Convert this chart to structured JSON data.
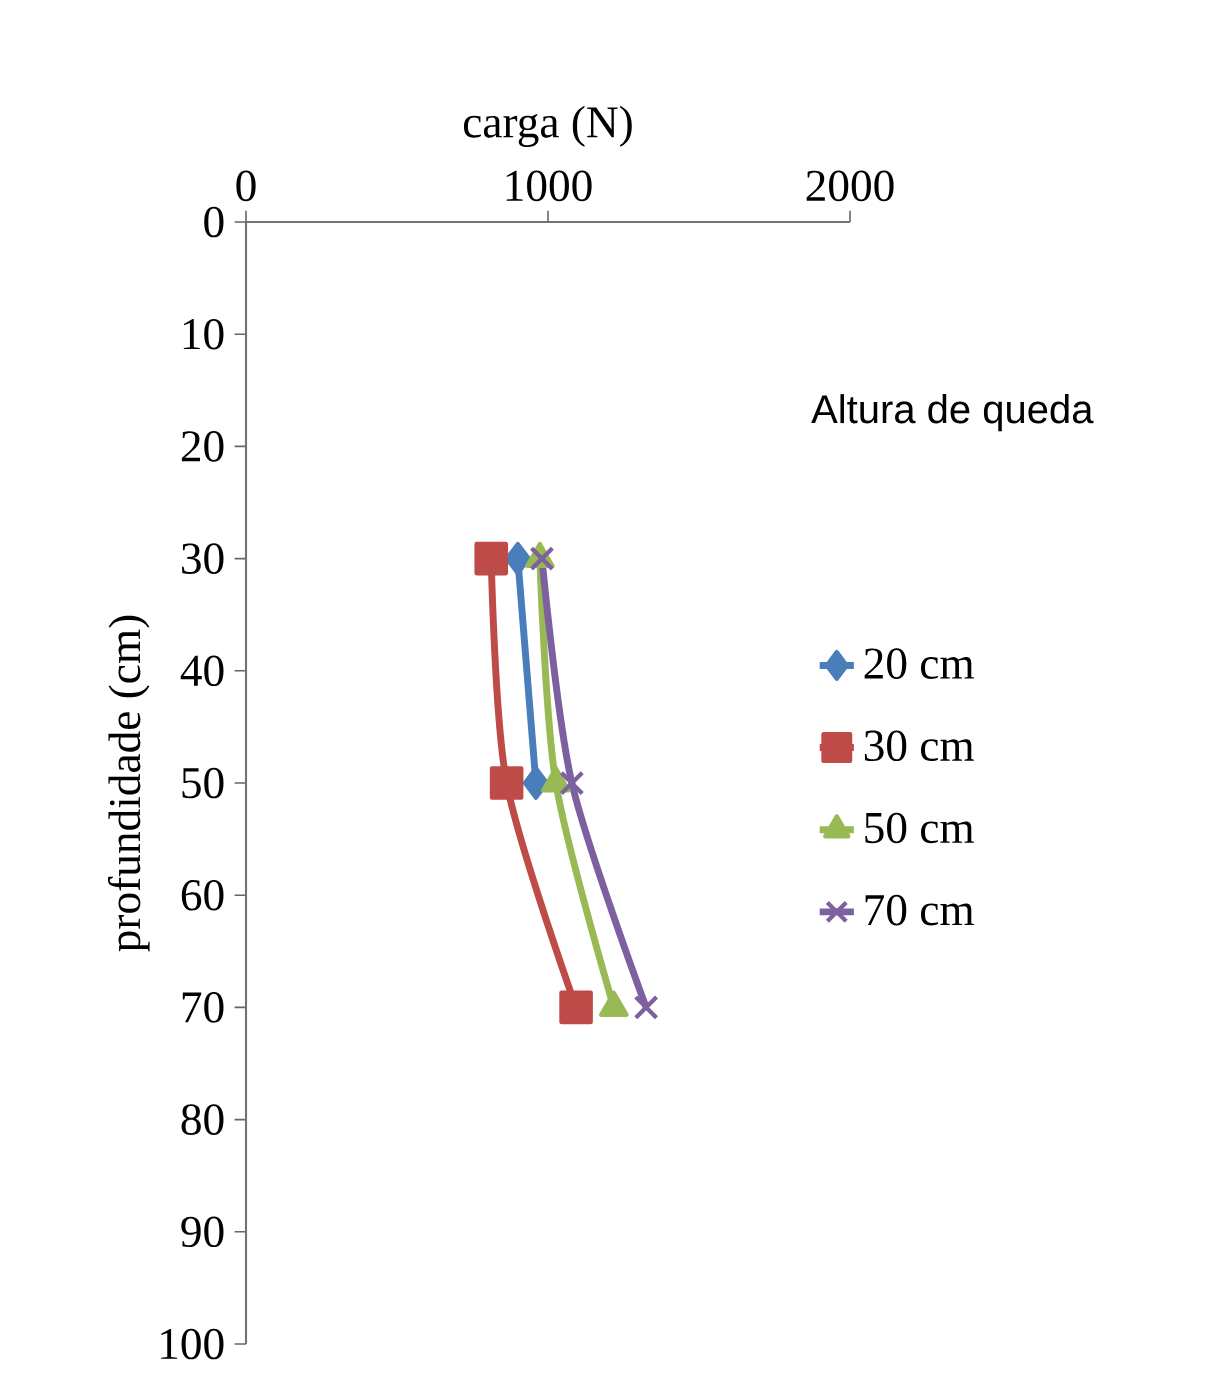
{
  "chart_data": {
    "type": "line",
    "orientation": "horizontal",
    "xlabel": "carga (N)",
    "ylabel": "profundidade (cm)",
    "legend_title": "Altura de queda",
    "x": [
      30,
      50,
      70
    ],
    "series": [
      {
        "name": "20 cm",
        "color": "#4a7ebb",
        "marker": "diamond",
        "values": [
          900,
          960,
          null
        ]
      },
      {
        "name": "30 cm",
        "color": "#be4b48",
        "marker": "square",
        "values": [
          812,
          863,
          1093
        ]
      },
      {
        "name": "50 cm",
        "color": "#98b954",
        "marker": "triangle",
        "values": [
          973,
          1026,
          1218
        ]
      },
      {
        "name": "70 cm",
        "color": "#7d60a0",
        "marker": "cross",
        "values": [
          980,
          1079,
          1325
        ]
      }
    ],
    "xlim": [
      0,
      2000
    ],
    "xticks": [
      0,
      1000,
      2000
    ],
    "ylim": [
      100,
      0
    ],
    "yticks": [
      0,
      10,
      20,
      30,
      40,
      50,
      60,
      70,
      80,
      90,
      100
    ],
    "line_style": "solid",
    "grid": false,
    "legend": "right"
  }
}
